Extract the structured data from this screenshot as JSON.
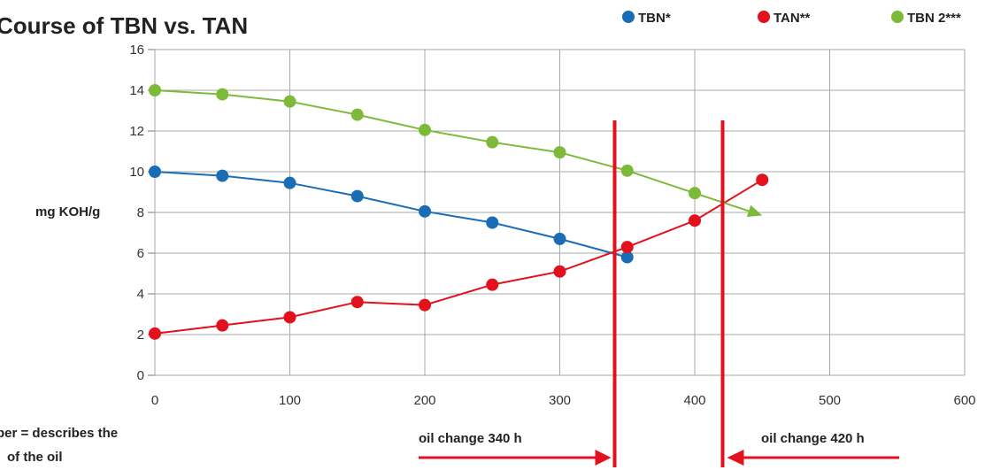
{
  "chart_data": {
    "type": "line",
    "title": "Course of TBN vs. TAN",
    "ylabel": "mg KOH/g",
    "xlabel": "",
    "x": [
      0,
      50,
      100,
      150,
      200,
      250,
      300,
      350,
      400,
      450
    ],
    "xlim": [
      0,
      600
    ],
    "ylim": [
      0,
      16
    ],
    "x_ticks": [
      "0",
      "100",
      "200",
      "300",
      "400",
      "500",
      "600"
    ],
    "y_ticks": [
      "0",
      "2",
      "4",
      "6",
      "8",
      "10",
      "12",
      "14",
      "16"
    ],
    "grid": true,
    "legend_position": "top-right",
    "series": [
      {
        "name": "TBN*",
        "color": "#1a6db5",
        "x": [
          0,
          50,
          100,
          150,
          200,
          250,
          300,
          350
        ],
        "values": [
          10.0,
          9.8,
          9.45,
          8.8,
          8.05,
          7.5,
          6.7,
          5.8
        ]
      },
      {
        "name": "TAN**",
        "color": "#e3101e",
        "x": [
          0,
          50,
          100,
          150,
          200,
          250,
          300,
          350,
          400,
          450
        ],
        "values": [
          2.05,
          2.45,
          2.85,
          3.6,
          3.45,
          4.45,
          5.1,
          6.3,
          7.6,
          9.6
        ]
      },
      {
        "name": "TBN 2***",
        "color": "#7dba3a",
        "x": [
          0,
          50,
          100,
          150,
          200,
          250,
          300,
          350,
          400
        ],
        "values": [
          14.0,
          13.8,
          13.45,
          12.8,
          12.05,
          11.45,
          10.95,
          10.05,
          8.95
        ],
        "arrow_end": [
          450,
          7.85
        ]
      }
    ],
    "annotations": {
      "oil_change_1": {
        "x": 340,
        "label": "oil change 340 h",
        "color": "#e3101e"
      },
      "oil_change_2": {
        "x": 420,
        "label": "oil change 420 h",
        "color": "#e3101e"
      },
      "footnote_line1": "ber = describes the",
      "footnote_line2": "of the oil"
    }
  }
}
